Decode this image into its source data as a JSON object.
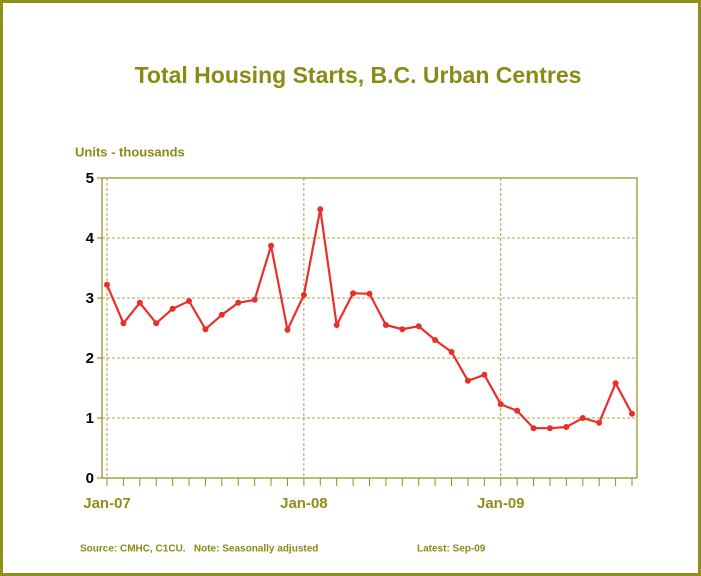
{
  "chart_data": {
    "type": "line",
    "title": "Total Housing Starts, B.C. Urban Centres",
    "y_label": "Units - thousands",
    "source": "Source: CMHC, C1CU.   Note: Seasonally adjusted",
    "latest": "Latest: Sep-09",
    "categories": [
      "Jan-07",
      null,
      null,
      null,
      null,
      null,
      null,
      null,
      null,
      null,
      null,
      null,
      "Jan-08",
      null,
      null,
      null,
      null,
      null,
      null,
      null,
      null,
      null,
      null,
      null,
      "Jan-09",
      null,
      null,
      null,
      null,
      null,
      null,
      null,
      null
    ],
    "series": [
      {
        "name": "Housing starts",
        "color": "#e8302a",
        "values": [
          3.22,
          2.58,
          2.92,
          2.58,
          2.82,
          2.95,
          2.48,
          2.72,
          2.92,
          2.97,
          3.87,
          2.47,
          3.05,
          4.48,
          2.55,
          3.08,
          3.07,
          2.55,
          2.48,
          2.53,
          2.3,
          2.1,
          1.62,
          1.72,
          1.23,
          1.12,
          0.83,
          0.83,
          0.85,
          1.0,
          0.92,
          1.58,
          1.07
        ]
      }
    ],
    "ylim": [
      0,
      5
    ],
    "yticks": [
      0,
      1,
      2,
      3,
      4,
      5
    ],
    "grid": true
  }
}
